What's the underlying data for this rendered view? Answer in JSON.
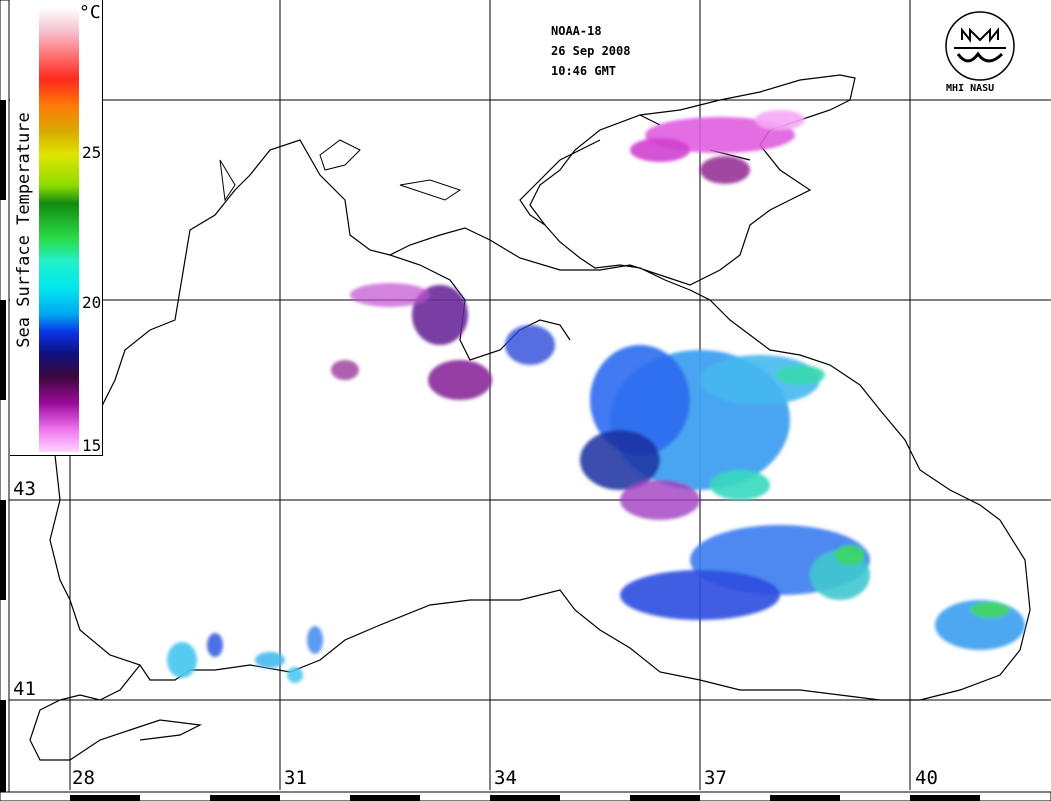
{
  "header": {
    "satellite": "NOAA-18",
    "date": "26 Sep 2008",
    "time": "10:46 GMT"
  },
  "logo": {
    "text": "MHI NASU",
    "icon": "mhi-emblem-icon"
  },
  "legend": {
    "title": "Sea Surface Temperature",
    "unit": "°C",
    "ticks": [
      "25",
      "20",
      "15"
    ],
    "colors": [
      "#ffffff",
      "#f6c4d2",
      "#ff2a1c",
      "#ff7a08",
      "#e0e400",
      "#128c12",
      "#2bdc48",
      "#00e8ef",
      "#0b34e6",
      "#0f0f7e",
      "#9b0a9b",
      "#ffd6ff"
    ]
  },
  "grid": {
    "longitude_labels": [
      "28",
      "31",
      "34",
      "37",
      "40"
    ],
    "latitude_labels": [
      "43",
      "41"
    ]
  },
  "colors": {
    "coast": "#000000",
    "background": "#ffffff",
    "warm": "#5a7dff",
    "cool": "#c020c0"
  }
}
